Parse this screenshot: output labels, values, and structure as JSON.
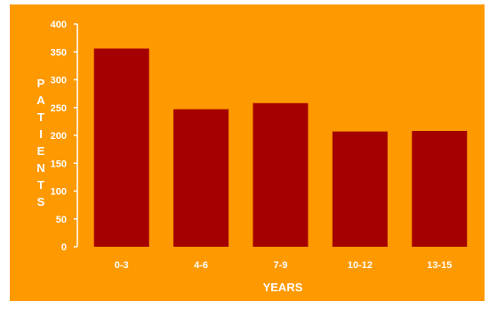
{
  "chart_data": {
    "type": "bar",
    "title": "",
    "xlabel": "YEARS",
    "ylabel": "PATIENTS",
    "categories": [
      "0-3",
      "4-6",
      "7-9",
      "10-12",
      "13-15"
    ],
    "values": [
      356,
      247,
      258,
      207,
      208
    ],
    "ylim": [
      0,
      400
    ],
    "yticks": [
      0,
      50,
      100,
      150,
      200,
      250,
      300,
      350,
      400
    ],
    "grid": false,
    "legend": "none"
  },
  "colors": {
    "background": "#FF9900",
    "bar": "#A50000",
    "text": "#FFFFFF",
    "axis": "#FFFFFF"
  }
}
